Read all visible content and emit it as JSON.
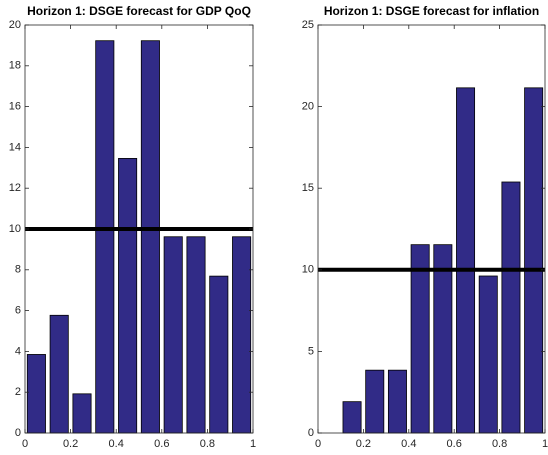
{
  "chart_data": [
    {
      "type": "bar",
      "title": "Horizon 1: DSGE forecast for GDP QoQ",
      "x": [
        0.05,
        0.15,
        0.25,
        0.35,
        0.45,
        0.55,
        0.65,
        0.75,
        0.85,
        0.95
      ],
      "values": [
        3.85,
        5.77,
        1.92,
        19.23,
        13.46,
        19.23,
        9.62,
        9.62,
        7.69,
        9.62
      ],
      "bar_width": 0.08,
      "color": "#312b87",
      "edge_color": "#000000",
      "hline": 10,
      "hline_color": "#000000",
      "xlim": [
        0,
        1
      ],
      "xticks": [
        0,
        0.2,
        0.4,
        0.6,
        0.8,
        1
      ],
      "ylim": [
        0,
        20
      ],
      "yticks": [
        0,
        2,
        4,
        6,
        8,
        10,
        12,
        14,
        16,
        18,
        20
      ]
    },
    {
      "type": "bar",
      "title": "Horizon 1: DSGE forecast for inflation",
      "x": [
        0.05,
        0.15,
        0.25,
        0.35,
        0.45,
        0.55,
        0.65,
        0.75,
        0.85,
        0.95
      ],
      "values": [
        0,
        1.92,
        3.85,
        3.85,
        11.54,
        11.54,
        21.15,
        9.62,
        15.38,
        21.15
      ],
      "bar_width": 0.08,
      "color": "#312b87",
      "edge_color": "#000000",
      "hline": 10,
      "hline_color": "#000000",
      "xlim": [
        0,
        1
      ],
      "xticks": [
        0,
        0.2,
        0.4,
        0.6,
        0.8,
        1
      ],
      "ylim": [
        0,
        25
      ],
      "yticks": [
        0,
        5,
        10,
        15,
        20,
        25
      ]
    }
  ]
}
